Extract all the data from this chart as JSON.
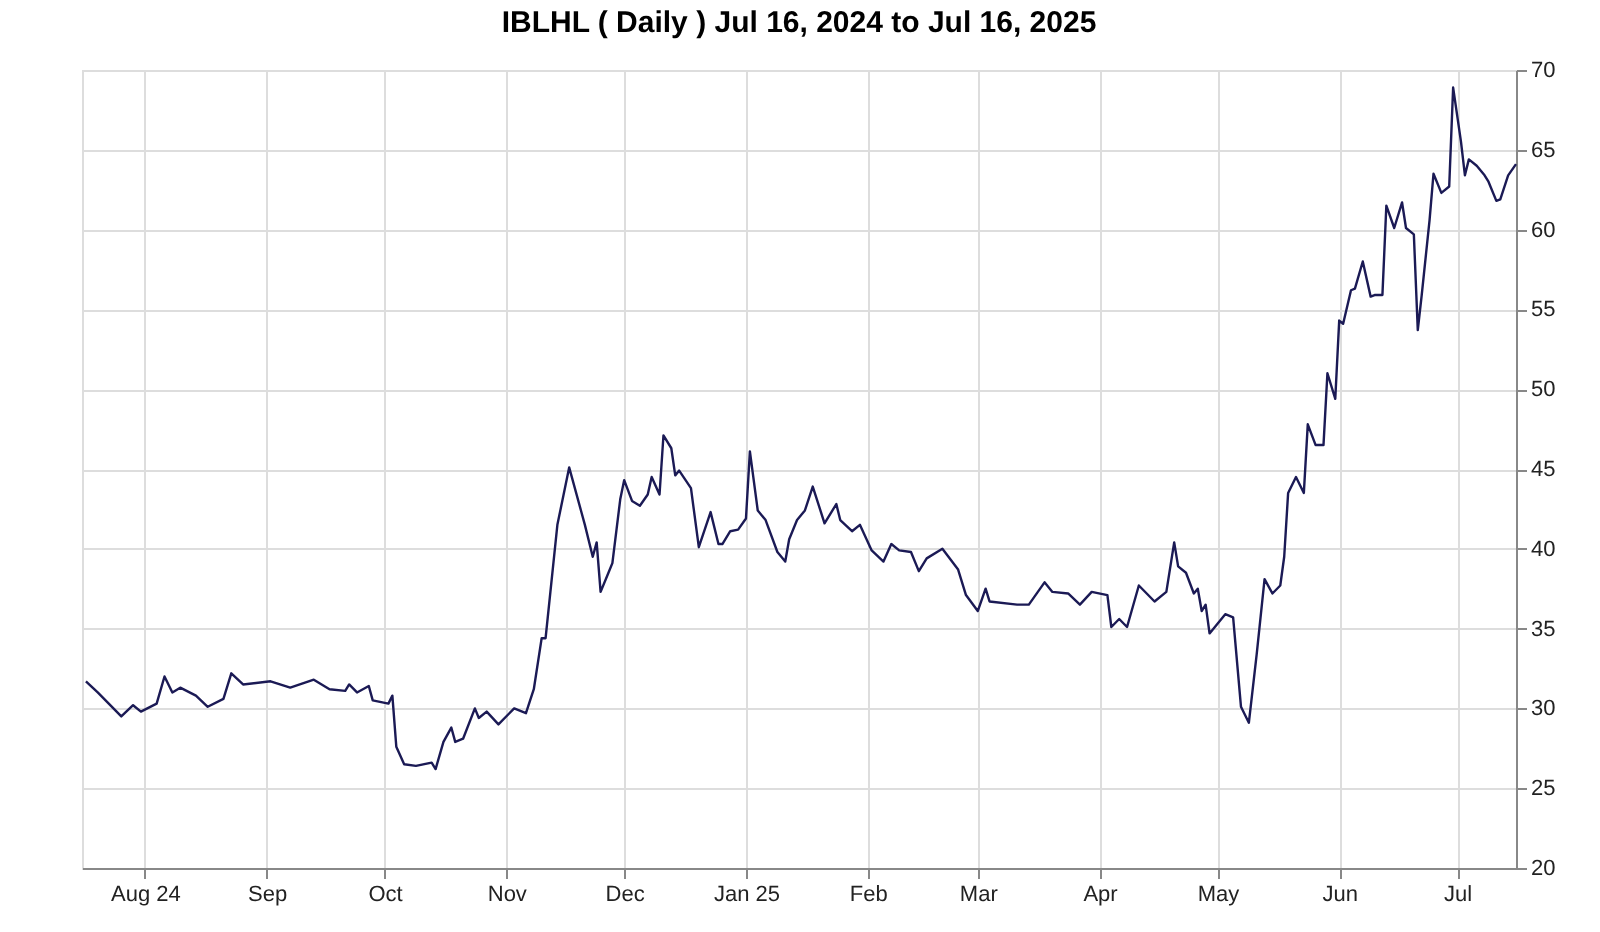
{
  "chart_data": {
    "type": "line",
    "title": "IBLHL ( Daily ) Jul 16, 2024 to Jul 16, 2025",
    "xlim": [
      "2024-07-16",
      "2025-07-16"
    ],
    "xticks": [
      {
        "value": "2024-08-01",
        "label": "Aug 24"
      },
      {
        "value": "2024-09-01",
        "label": "Sep"
      },
      {
        "value": "2024-10-01",
        "label": "Oct"
      },
      {
        "value": "2024-11-01",
        "label": "Nov"
      },
      {
        "value": "2024-12-01",
        "label": "Dec"
      },
      {
        "value": "2025-01-01",
        "label": "Jan 25"
      },
      {
        "value": "2025-02-01",
        "label": "Feb"
      },
      {
        "value": "2025-03-01",
        "label": "Mar"
      },
      {
        "value": "2025-04-01",
        "label": "Apr"
      },
      {
        "value": "2025-05-01",
        "label": "May"
      },
      {
        "value": "2025-06-01",
        "label": "Jun"
      },
      {
        "value": "2025-07-01",
        "label": "Jul"
      }
    ],
    "ylim": [
      20,
      70
    ],
    "yticks": [
      20,
      25,
      30,
      35,
      40,
      45,
      50,
      55,
      60,
      65,
      70
    ],
    "grid": true,
    "x": [
      "2024-07-17",
      "2024-07-20",
      "2024-07-26",
      "2024-07-29",
      "2024-07-31",
      "2024-08-04",
      "2024-08-06",
      "2024-08-08",
      "2024-08-10",
      "2024-08-14",
      "2024-08-17",
      "2024-08-21",
      "2024-08-23",
      "2024-08-26",
      "2024-09-02",
      "2024-09-07",
      "2024-09-13",
      "2024-09-17",
      "2024-09-21",
      "2024-09-22",
      "2024-09-24",
      "2024-09-27",
      "2024-09-28",
      "2024-10-02",
      "2024-10-03",
      "2024-10-04",
      "2024-10-06",
      "2024-10-09",
      "2024-10-13",
      "2024-10-14",
      "2024-10-16",
      "2024-10-18",
      "2024-10-19",
      "2024-10-21",
      "2024-10-24",
      "2024-10-25",
      "2024-10-27",
      "2024-10-30",
      "2024-11-03",
      "2024-11-06",
      "2024-11-08",
      "2024-11-10",
      "2024-11-11",
      "2024-11-14",
      "2024-11-17",
      "2024-11-20",
      "2024-11-21",
      "2024-11-23",
      "2024-11-24",
      "2024-11-25",
      "2024-11-27",
      "2024-11-28",
      "2024-11-30",
      "2024-12-01",
      "2024-12-03",
      "2024-12-05",
      "2024-12-07",
      "2024-12-08",
      "2024-12-10",
      "2024-12-11",
      "2024-12-13",
      "2024-12-14",
      "2024-12-15",
      "2024-12-18",
      "2024-12-20",
      "2024-12-23",
      "2024-12-25",
      "2024-12-26",
      "2024-12-28",
      "2024-12-30",
      "2025-01-01",
      "2025-01-02",
      "2025-01-04",
      "2025-01-06",
      "2025-01-09",
      "2025-01-11",
      "2025-01-12",
      "2025-01-14",
      "2025-01-16",
      "2025-01-18",
      "2025-01-21",
      "2025-01-24",
      "2025-01-25",
      "2025-01-28",
      "2025-01-30",
      "2025-02-02",
      "2025-02-05",
      "2025-02-07",
      "2025-02-09",
      "2025-02-12",
      "2025-02-14",
      "2025-02-16",
      "2025-02-20",
      "2025-02-24",
      "2025-02-26",
      "2025-03-01",
      "2025-03-03",
      "2025-03-04",
      "2025-03-11",
      "2025-03-14",
      "2025-03-18",
      "2025-03-20",
      "2025-03-24",
      "2025-03-27",
      "2025-03-30",
      "2025-04-03",
      "2025-04-04",
      "2025-04-06",
      "2025-04-08",
      "2025-04-11",
      "2025-04-15",
      "2025-04-18",
      "2025-04-20",
      "2025-04-21",
      "2025-04-23",
      "2025-04-25",
      "2025-04-26",
      "2025-04-27",
      "2025-04-28",
      "2025-04-29",
      "2025-05-03",
      "2025-05-05",
      "2025-05-07",
      "2025-05-09",
      "2025-05-11",
      "2025-05-13",
      "2025-05-15",
      "2025-05-17",
      "2025-05-18",
      "2025-05-19",
      "2025-05-21",
      "2025-05-23",
      "2025-05-24",
      "2025-05-26",
      "2025-05-28",
      "2025-05-29",
      "2025-05-31",
      "2025-06-01",
      "2025-06-02",
      "2025-06-04",
      "2025-06-05",
      "2025-06-07",
      "2025-06-09",
      "2025-06-10",
      "2025-06-12",
      "2025-06-13",
      "2025-06-15",
      "2025-06-17",
      "2025-06-18",
      "2025-06-20",
      "2025-06-21",
      "2025-06-22",
      "2025-06-24",
      "2025-06-25",
      "2025-06-27",
      "2025-06-29",
      "2025-06-30",
      "2025-07-02",
      "2025-07-03",
      "2025-07-04",
      "2025-07-06",
      "2025-07-08",
      "2025-07-09",
      "2025-07-11",
      "2025-07-12",
      "2025-07-14",
      "2025-07-16"
    ],
    "series": [
      {
        "color": "#1b1a55",
        "values": [
          31.7,
          31.0,
          29.5,
          30.2,
          29.8,
          30.3,
          32.0,
          31.0,
          31.3,
          30.8,
          30.1,
          30.6,
          32.2,
          31.5,
          31.7,
          31.3,
          31.8,
          31.2,
          31.1,
          31.5,
          31.0,
          31.4,
          30.5,
          30.3,
          30.8,
          27.6,
          26.5,
          26.4,
          26.6,
          26.2,
          27.9,
          28.8,
          27.9,
          28.1,
          30.0,
          29.4,
          29.8,
          29.0,
          30.0,
          29.7,
          31.2,
          34.4,
          34.4,
          41.5,
          45.1,
          42.4,
          41.5,
          39.5,
          40.4,
          37.3,
          38.5,
          39.1,
          43.1,
          44.3,
          43.0,
          42.7,
          43.4,
          44.5,
          43.4,
          47.1,
          46.3,
          44.6,
          44.9,
          43.8,
          40.1,
          42.3,
          40.3,
          40.3,
          41.1,
          41.2,
          41.9,
          46.1,
          42.4,
          41.8,
          39.8,
          39.2,
          40.6,
          41.8,
          42.4,
          43.9,
          41.6,
          42.8,
          41.8,
          41.1,
          41.5,
          39.9,
          39.2,
          40.3,
          39.9,
          39.8,
          38.6,
          39.4,
          40.0,
          38.7,
          37.1,
          36.1,
          37.5,
          36.7,
          36.5,
          36.5,
          37.9,
          37.3,
          37.2,
          36.5,
          37.3,
          37.1,
          35.1,
          35.6,
          35.1,
          37.7,
          36.7,
          37.3,
          40.4,
          38.9,
          38.5,
          37.2,
          37.5,
          36.1,
          36.5,
          34.7,
          35.9,
          35.7,
          30.1,
          29.1,
          33.4,
          38.1,
          37.2,
          37.7,
          39.5,
          43.5,
          44.5,
          43.5,
          47.8,
          46.5,
          46.5,
          51.0,
          49.4,
          54.3,
          54.1,
          56.2,
          56.3,
          58.0,
          55.8,
          55.9,
          55.9,
          61.5,
          60.1,
          61.7,
          60.1,
          59.7,
          53.7,
          55.9,
          60.6,
          63.5,
          62.3,
          62.7,
          68.9,
          65.5,
          63.4,
          64.4,
          64.0,
          63.4,
          63.0,
          61.8,
          61.9,
          63.4,
          64.1
        ]
      }
    ]
  }
}
